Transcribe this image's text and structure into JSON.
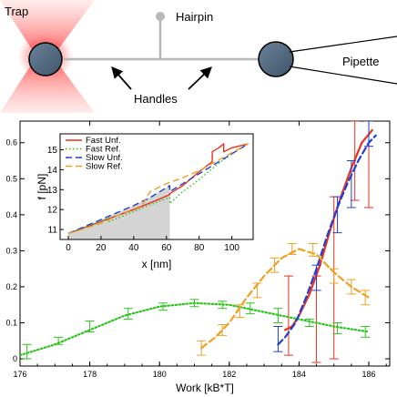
{
  "schematic": {
    "trap_label": "Trap",
    "hairpin_label": "Hairpin",
    "pipette_label": "Pipette",
    "handles_label": "Handles"
  },
  "chart_data": [
    {
      "type": "line",
      "xlabel": "Work [kB*T]",
      "ylabel": "",
      "xlim": [
        176,
        186.6
      ],
      "ylim": [
        -0.02,
        0.66
      ],
      "xticks": [
        176,
        178,
        180,
        182,
        184,
        186
      ],
      "yticks": [
        0,
        0.1,
        0.2,
        0.3,
        0.4,
        0.5,
        0.6
      ],
      "series": [
        {
          "name": "Fast Unf.",
          "color": "#e8321a",
          "style": "solid",
          "curve": [
            [
              183.6,
              0.08
            ],
            [
              183.8,
              0.09
            ],
            [
              184.0,
              0.12
            ],
            [
              184.3,
              0.18
            ],
            [
              184.6,
              0.26
            ],
            [
              184.9,
              0.36
            ],
            [
              185.2,
              0.45
            ],
            [
              185.5,
              0.53
            ],
            [
              185.8,
              0.6
            ],
            [
              186.1,
              0.635
            ]
          ],
          "errorbars": [
            {
              "x": 183.7,
              "y": 0.1,
              "lo": 0.01,
              "hi": 0.23
            },
            {
              "x": 184.5,
              "y": 0.08,
              "lo": -0.01,
              "hi": 0.23
            },
            {
              "x": 185.0,
              "y": 0.19,
              "lo": 0.0,
              "hi": 0.45
            },
            {
              "x": 185.6,
              "y": 0.56,
              "lo": 0.44,
              "hi": 0.66
            },
            {
              "x": 186.0,
              "y": 0.6,
              "lo": 0.42,
              "hi": 0.66
            }
          ]
        },
        {
          "name": "Fast Ref.",
          "color": "#2ec41e",
          "style": "dotted",
          "curve": [
            [
              176.0,
              0.01
            ],
            [
              177.0,
              0.04
            ],
            [
              178.0,
              0.08
            ],
            [
              179.0,
              0.12
            ],
            [
              180.0,
              0.145
            ],
            [
              181.0,
              0.155
            ],
            [
              182.0,
              0.15
            ],
            [
              183.0,
              0.13
            ],
            [
              184.0,
              0.11
            ],
            [
              185.0,
              0.09
            ],
            [
              186.0,
              0.075
            ]
          ],
          "errorbars": [
            {
              "x": 176.2,
              "y": 0.02,
              "lo": 0.0,
              "hi": 0.04
            },
            {
              "x": 177.1,
              "y": 0.05,
              "lo": 0.04,
              "hi": 0.06
            },
            {
              "x": 178.0,
              "y": 0.09,
              "lo": 0.075,
              "hi": 0.105
            },
            {
              "x": 179.1,
              "y": 0.125,
              "lo": 0.11,
              "hi": 0.14
            },
            {
              "x": 180.1,
              "y": 0.145,
              "lo": 0.135,
              "hi": 0.155
            },
            {
              "x": 181.0,
              "y": 0.155,
              "lo": 0.145,
              "hi": 0.165
            },
            {
              "x": 181.8,
              "y": 0.15,
              "lo": 0.14,
              "hi": 0.16
            },
            {
              "x": 182.6,
              "y": 0.14,
              "lo": 0.125,
              "hi": 0.155
            },
            {
              "x": 183.4,
              "y": 0.12,
              "lo": 0.1,
              "hi": 0.14
            },
            {
              "x": 184.3,
              "y": 0.1,
              "lo": 0.09,
              "hi": 0.11
            },
            {
              "x": 185.1,
              "y": 0.085,
              "lo": 0.07,
              "hi": 0.1
            },
            {
              "x": 185.9,
              "y": 0.075,
              "lo": 0.06,
              "hi": 0.09
            }
          ]
        },
        {
          "name": "Slow Unf.",
          "color": "#1f3fd6",
          "style": "dashed",
          "curve": [
            [
              183.4,
              0.04
            ],
            [
              183.6,
              0.06
            ],
            [
              183.9,
              0.1
            ],
            [
              184.2,
              0.17
            ],
            [
              184.5,
              0.25
            ],
            [
              184.8,
              0.34
            ],
            [
              185.1,
              0.42
            ],
            [
              185.4,
              0.49
            ],
            [
              185.7,
              0.55
            ],
            [
              186.0,
              0.6
            ],
            [
              186.2,
              0.62
            ]
          ],
          "errorbars": [
            {
              "x": 183.4,
              "y": 0.05,
              "lo": 0.02,
              "hi": 0.09
            },
            {
              "x": 184.5,
              "y": 0.22,
              "lo": 0.19,
              "hi": 0.26
            },
            {
              "x": 185.1,
              "y": 0.4,
              "lo": 0.35,
              "hi": 0.45
            },
            {
              "x": 185.5,
              "y": 0.49,
              "lo": 0.42,
              "hi": 0.55
            },
            {
              "x": 186.0,
              "y": 0.64,
              "lo": 0.59,
              "hi": 0.66
            }
          ]
        },
        {
          "name": "Slow Ref.",
          "color": "#f0a020",
          "style": "dashed",
          "curve": [
            [
              181.2,
              0.03
            ],
            [
              181.6,
              0.06
            ],
            [
              182.0,
              0.1
            ],
            [
              182.5,
              0.17
            ],
            [
              183.0,
              0.23
            ],
            [
              183.5,
              0.28
            ],
            [
              184.0,
              0.305
            ],
            [
              184.5,
              0.29
            ],
            [
              185.0,
              0.24
            ],
            [
              185.5,
              0.2
            ],
            [
              186.0,
              0.17
            ]
          ],
          "errorbars": [
            {
              "x": 181.2,
              "y": 0.03,
              "lo": 0.01,
              "hi": 0.05
            },
            {
              "x": 181.8,
              "y": 0.08,
              "lo": 0.065,
              "hi": 0.095
            },
            {
              "x": 182.3,
              "y": 0.13,
              "lo": 0.115,
              "hi": 0.15
            },
            {
              "x": 182.8,
              "y": 0.19,
              "lo": 0.17,
              "hi": 0.21
            },
            {
              "x": 183.3,
              "y": 0.26,
              "lo": 0.24,
              "hi": 0.28
            },
            {
              "x": 183.8,
              "y": 0.305,
              "lo": 0.29,
              "hi": 0.32
            },
            {
              "x": 184.4,
              "y": 0.3,
              "lo": 0.285,
              "hi": 0.32
            },
            {
              "x": 185.0,
              "y": 0.23,
              "lo": 0.21,
              "hi": 0.25
            },
            {
              "x": 185.5,
              "y": 0.2,
              "lo": 0.18,
              "hi": 0.22
            },
            {
              "x": 185.9,
              "y": 0.17,
              "lo": 0.15,
              "hi": 0.19
            }
          ]
        }
      ]
    },
    {
      "type": "line",
      "xlabel": "x [nm]",
      "ylabel": "f [pN]",
      "xlim": [
        -5,
        113
      ],
      "ylim": [
        10.5,
        15.8
      ],
      "xticks": [
        0,
        20,
        40,
        60,
        80,
        100
      ],
      "yticks": [
        11,
        12,
        13,
        14,
        15
      ],
      "shaded_region_x": [
        0,
        62
      ],
      "legend_position": "top-left",
      "series": [
        {
          "name": "Fast Unf.",
          "color": "#e8321a",
          "style": "solid",
          "points": [
            [
              0,
              10.8
            ],
            [
              20,
              11.4
            ],
            [
              40,
              12.0
            ],
            [
              55,
              12.5
            ],
            [
              62,
              12.75
            ],
            [
              62,
              12.8
            ],
            [
              70,
              13.2
            ],
            [
              80,
              13.9
            ],
            [
              88,
              14.4
            ],
            [
              88,
              14.9
            ],
            [
              92,
              15.1
            ],
            [
              95,
              15.3
            ],
            [
              95,
              14.9
            ],
            [
              100,
              15.1
            ],
            [
              110,
              15.3
            ]
          ]
        },
        {
          "name": "Fast Ref.",
          "color": "#2ec41e",
          "style": "dotted",
          "points": [
            [
              0,
              10.8
            ],
            [
              20,
              11.4
            ],
            [
              25,
              11.6
            ],
            [
              25,
              11.4
            ],
            [
              40,
              11.9
            ],
            [
              55,
              12.4
            ],
            [
              62,
              12.6
            ],
            [
              62,
              12.3
            ],
            [
              70,
              12.9
            ],
            [
              80,
              13.5
            ],
            [
              90,
              14.2
            ],
            [
              100,
              14.8
            ],
            [
              110,
              15.3
            ]
          ]
        },
        {
          "name": "Slow Unf.",
          "color": "#1f3fd6",
          "style": "dashed",
          "points": [
            [
              0,
              10.8
            ],
            [
              20,
              11.5
            ],
            [
              40,
              12.2
            ],
            [
              50,
              12.6
            ],
            [
              60,
              13.1
            ],
            [
              62,
              13.2
            ],
            [
              62,
              12.9
            ],
            [
              70,
              13.3
            ],
            [
              80,
              13.8
            ],
            [
              90,
              14.3
            ],
            [
              100,
              14.8
            ],
            [
              110,
              15.3
            ]
          ]
        },
        {
          "name": "Slow Ref.",
          "color": "#f0a020",
          "style": "dashed",
          "points": [
            [
              0,
              10.8
            ],
            [
              20,
              11.3
            ],
            [
              30,
              11.7
            ],
            [
              45,
              12.2
            ],
            [
              50,
              12.9
            ],
            [
              60,
              13.3
            ],
            [
              70,
              13.6
            ],
            [
              80,
              13.95
            ],
            [
              90,
              14.4
            ],
            [
              100,
              14.85
            ],
            [
              110,
              15.3
            ]
          ]
        }
      ]
    }
  ]
}
